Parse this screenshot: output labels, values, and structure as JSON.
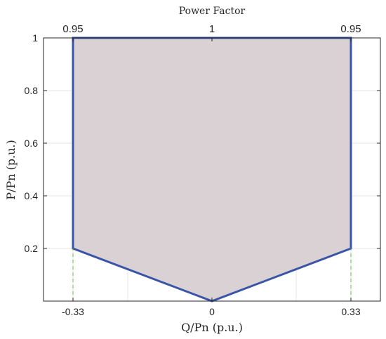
{
  "chart_data": {
    "type": "area",
    "title": "",
    "top_axis": {
      "label": "Power Factor",
      "ticks": [
        {
          "q": -0.33,
          "label": "0.95"
        },
        {
          "q": 0,
          "label": "1"
        },
        {
          "q": 0.33,
          "label": "0.95"
        }
      ]
    },
    "xlabel": "Q/Pn (p.u.)",
    "ylabel": "P/Pn (p.u.)",
    "xlim": [
      -0.4,
      0.4
    ],
    "ylim": [
      0,
      1
    ],
    "x_ticks": [
      {
        "value": -0.33,
        "label": "-0.33"
      },
      {
        "value": 0,
        "label": "0"
      },
      {
        "value": 0.33,
        "label": "0.33"
      }
    ],
    "y_ticks": [
      {
        "value": 0.2,
        "label": "0.2"
      },
      {
        "value": 0.4,
        "label": "0.4"
      },
      {
        "value": 0.6,
        "label": "0.6"
      },
      {
        "value": 0.8,
        "label": "0.8"
      },
      {
        "value": 1,
        "label": "1"
      }
    ],
    "grid": true,
    "polygon": [
      {
        "x": -0.33,
        "y": 1
      },
      {
        "x": 0.33,
        "y": 1
      },
      {
        "x": 0.33,
        "y": 0.2
      },
      {
        "x": 0,
        "y": 0
      },
      {
        "x": -0.33,
        "y": 0.2
      }
    ],
    "guide_lines": [
      {
        "x": -0.33,
        "y_from": 0,
        "y_to": 0.2
      },
      {
        "x": 0.33,
        "y_from": 0,
        "y_to": 0.2
      }
    ],
    "colors": {
      "fill": "#d9d1d4",
      "edge": "#3a55a8",
      "guide": "#66bb44",
      "grid": "#e6e6e6",
      "axis": "#262626"
    }
  }
}
